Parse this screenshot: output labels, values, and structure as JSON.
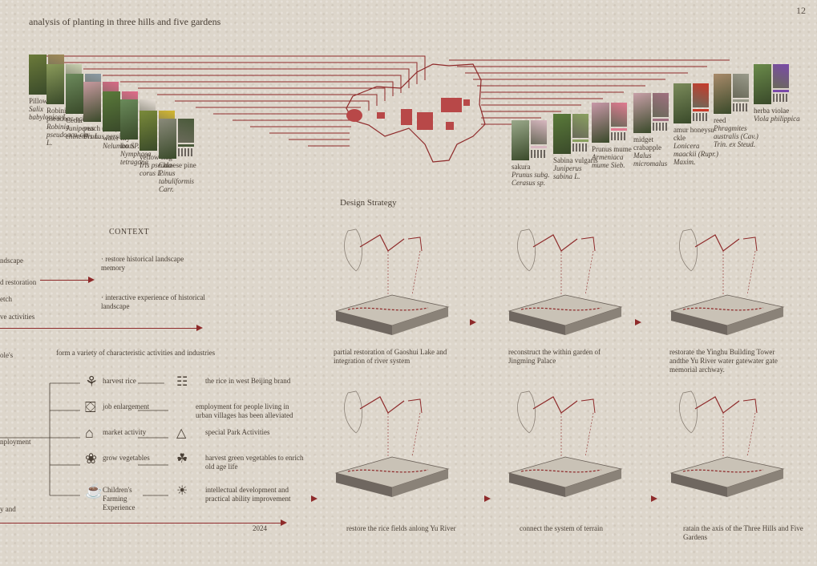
{
  "header": {
    "title": "analysis of planting in three hills and five gardens",
    "page_number": "12"
  },
  "plants_left": [
    {
      "name": "Pillow",
      "latin": "Salix babylonica L.",
      "c1": "#6b7a3a",
      "c2": "#a08a58"
    },
    {
      "name": "Robinia pseudoac-acia",
      "latin": "Robinia pseudoaca-cia L.",
      "c1": "#8a9a5a",
      "c2": "#c9d0b0"
    },
    {
      "name": "Cedar",
      "latin": "Juniperus chinensis L.",
      "c1": "#6c8a5c",
      "c2": "#8c9aa4"
    },
    {
      "name": "peach (tree)",
      "latin": "Prunus persica",
      "c1": "#c89aa0",
      "c2": "#d86a86"
    },
    {
      "name": "water lily",
      "latin": "Nelumbo SP.",
      "c1": "#5a7a3a",
      "c2": "#e26a8a"
    },
    {
      "name": "lotus",
      "latin": "Nymphaea tetragona",
      "c1": "#6a8a5a",
      "c2": "#e8e0d8"
    },
    {
      "name": "yellow flag",
      "latin": "Iris pseuda-corus L.",
      "c1": "#7a8a3a",
      "c2": "#d4b830"
    },
    {
      "name": "Chinese pine",
      "latin": "Pinus tabuliformis Carr.",
      "c1": "#8a8a7a",
      "c2": "#4a5a3a"
    }
  ],
  "plants_right": [
    {
      "name": "sakura",
      "latin": "Prunus subg. Cerasus sp.",
      "c1": "#9aa88a",
      "c2": "#d8b8c0"
    },
    {
      "name": "Sabina vulgaris",
      "latin": "Juniperus sabina L.",
      "c1": "#5a7a3a",
      "c2": "#8aa060"
    },
    {
      "name": "Prunus mume",
      "latin": "Armeniaca mume Sieb.",
      "c1": "#c898a8",
      "c2": "#e07a90"
    },
    {
      "name": "midget crabapple",
      "latin": "Malus micromalus",
      "c1": "#c8a0a8",
      "c2": "#a07080"
    },
    {
      "name": "amur honeysu-ckle",
      "latin": "Lonicera maackii (Rupr.) Maxim.",
      "c1": "#7a8a5a",
      "c2": "#c83a2a"
    },
    {
      "name": "reed",
      "latin": "Phragmites australis (Cav.) Trin. ex Steud.",
      "c1": "#a88a6a",
      "c2": "#9a9a8a"
    },
    {
      "name": "herba violae",
      "latin": "Viola philippica",
      "c1": "#6a8a4a",
      "c2": "#7a4aa8"
    }
  ],
  "context": {
    "heading": "CONTEXT",
    "bullets": [
      "restore historical landscape memory",
      "interactive experience of historical landscape"
    ],
    "left_labels": [
      "ndscape",
      "d restoration",
      "etch",
      "ve activities",
      "ole's",
      "nployment",
      "y and"
    ],
    "subtitle": "form a variety of characteristic activities and industries",
    "year": "2024"
  },
  "activities": [
    {
      "left": "harvest rice",
      "icon_left": "rice-icon",
      "right": "the rice in west Beijing brand",
      "icon_right": "brand-icon"
    },
    {
      "left": "job enlargement",
      "icon_left": "briefcase-icon",
      "right": "employment for people living in urban villages has been alleviated",
      "icon_right": ""
    },
    {
      "left": "market activity",
      "icon_left": "market-stall-icon",
      "right": "special Park Activities",
      "icon_right": "tent-icon"
    },
    {
      "left": "grow vegetables",
      "icon_left": "vegetable-icon",
      "right": "harvest green vegetables to enrich old age life",
      "icon_right": "sprout-icon"
    },
    {
      "left": "Children's Farming Experience",
      "icon_left": "watering-can-icon",
      "right": "intellectual development and practical ability improvement",
      "icon_right": "lightbulb-icon"
    }
  ],
  "strategy": {
    "heading": "Design Strategy",
    "captions": [
      "partial restoration of Gaoshui Lake and integration of river system",
      "reconstruct the within garden of Jingming Palace",
      "restorate the Yinghu Building Tower andthe Yu River water gatewater gate memorial archway.",
      "restore the rice fields anlong Yu River",
      "connect the system of terrain",
      "ratain the axis of the Three Hills and Five Gardens"
    ]
  },
  "colors": {
    "accent": "#8e2a2a",
    "paper": "#ddd6cb",
    "ink": "#4a4036"
  }
}
